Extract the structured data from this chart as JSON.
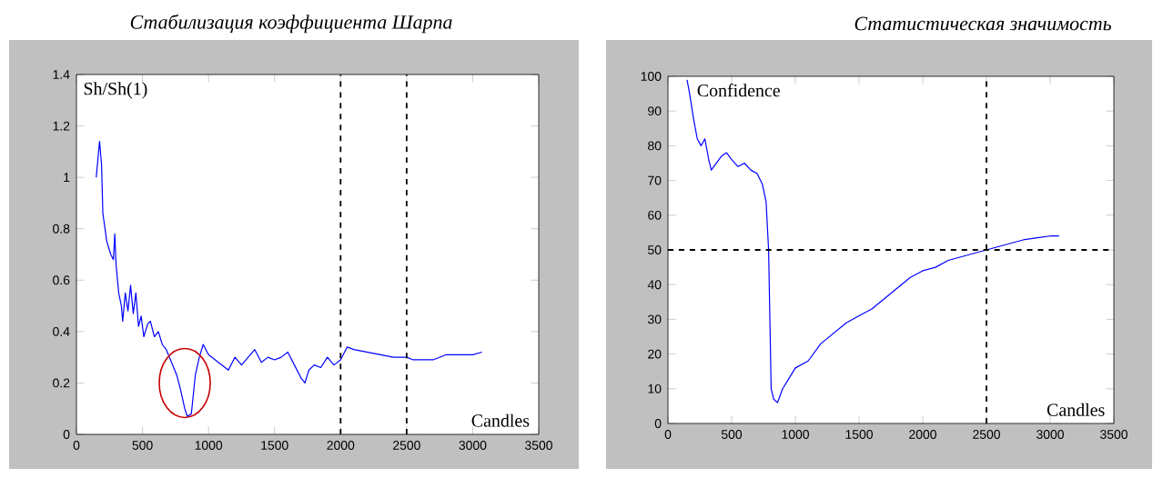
{
  "chart_data": [
    {
      "type": "line",
      "title": "Стабилизация коэффициента Шарпа",
      "ylabel": "Sh/Sh(1)",
      "xlabel": "Candles",
      "xlim": [
        0,
        3500
      ],
      "ylim": [
        0,
        1.4
      ],
      "xticks": [
        0,
        500,
        1000,
        1500,
        2000,
        2500,
        3000,
        3500
      ],
      "yticks": [
        0,
        0.2,
        0.4,
        0.6,
        0.8,
        1,
        1.2,
        1.4
      ],
      "x": [
        150,
        175,
        190,
        200,
        230,
        260,
        280,
        290,
        300,
        320,
        340,
        350,
        370,
        390,
        410,
        430,
        450,
        470,
        490,
        510,
        540,
        560,
        590,
        620,
        650,
        680,
        720,
        760,
        790,
        820,
        840,
        870,
        900,
        930,
        960,
        980,
        1000,
        1050,
        1100,
        1150,
        1200,
        1250,
        1300,
        1350,
        1400,
        1450,
        1500,
        1550,
        1600,
        1650,
        1700,
        1730,
        1760,
        1800,
        1850,
        1900,
        1950,
        2000,
        2050,
        2100,
        2200,
        2300,
        2400,
        2500,
        2550,
        2700,
        2800,
        2900,
        3000,
        3070
      ],
      "series": [
        {
          "color": "#0000ff",
          "values": [
            1.0,
            1.14,
            1.05,
            0.86,
            0.75,
            0.7,
            0.68,
            0.78,
            0.66,
            0.55,
            0.5,
            0.44,
            0.55,
            0.48,
            0.58,
            0.47,
            0.55,
            0.42,
            0.46,
            0.38,
            0.43,
            0.44,
            0.38,
            0.4,
            0.35,
            0.33,
            0.28,
            0.23,
            0.17,
            0.1,
            0.07,
            0.08,
            0.23,
            0.3,
            0.35,
            0.33,
            0.31,
            0.29,
            0.27,
            0.25,
            0.3,
            0.27,
            0.3,
            0.33,
            0.28,
            0.3,
            0.29,
            0.3,
            0.32,
            0.27,
            0.22,
            0.2,
            0.25,
            0.27,
            0.26,
            0.3,
            0.27,
            0.29,
            0.34,
            0.33,
            0.32,
            0.31,
            0.3,
            0.3,
            0.29,
            0.29,
            0.31,
            0.31,
            0.31,
            0.32
          ]
        }
      ],
      "ref_lines": [
        {
          "axis": "x",
          "value": 2000,
          "color": "#000000",
          "line_style": "dashed"
        },
        {
          "axis": "x",
          "value": 2500,
          "color": "#000000",
          "line_style": "dashed"
        }
      ]
    },
    {
      "type": "line",
      "title": "Статистическая значимость",
      "ylabel": "Confidence",
      "xlabel": "Candles",
      "xlim": [
        0,
        3500
      ],
      "ylim": [
        0,
        100
      ],
      "xticks": [
        0,
        500,
        1000,
        1500,
        2000,
        2500,
        3000,
        3500
      ],
      "yticks": [
        0,
        10,
        20,
        30,
        40,
        50,
        60,
        70,
        80,
        90,
        100
      ],
      "x": [
        150,
        170,
        200,
        230,
        260,
        290,
        320,
        340,
        380,
        420,
        460,
        500,
        550,
        600,
        650,
        700,
        740,
        770,
        790,
        800,
        810,
        830,
        860,
        900,
        950,
        1000,
        1100,
        1200,
        1300,
        1400,
        1500,
        1600,
        1700,
        1800,
        1900,
        2000,
        2100,
        2200,
        2300,
        2400,
        2500,
        2600,
        2700,
        2800,
        2900,
        3000,
        3070
      ],
      "series": [
        {
          "color": "#0000ff",
          "values": [
            99,
            95,
            88,
            82,
            80,
            82,
            76,
            73,
            75,
            77,
            78,
            76,
            74,
            75,
            73,
            72,
            69,
            64,
            50,
            30,
            10,
            7,
            6,
            10,
            13,
            16,
            18,
            23,
            26,
            29,
            31,
            33,
            36,
            39,
            42,
            44,
            45,
            47,
            48,
            49,
            50,
            51,
            52,
            53,
            53.5,
            54,
            54
          ]
        }
      ],
      "ref_lines": [
        {
          "axis": "x",
          "value": 2500,
          "color": "#000000",
          "line_style": "dashed"
        },
        {
          "axis": "y",
          "value": 50,
          "color": "#000000",
          "line_style": "dashed"
        }
      ]
    }
  ]
}
